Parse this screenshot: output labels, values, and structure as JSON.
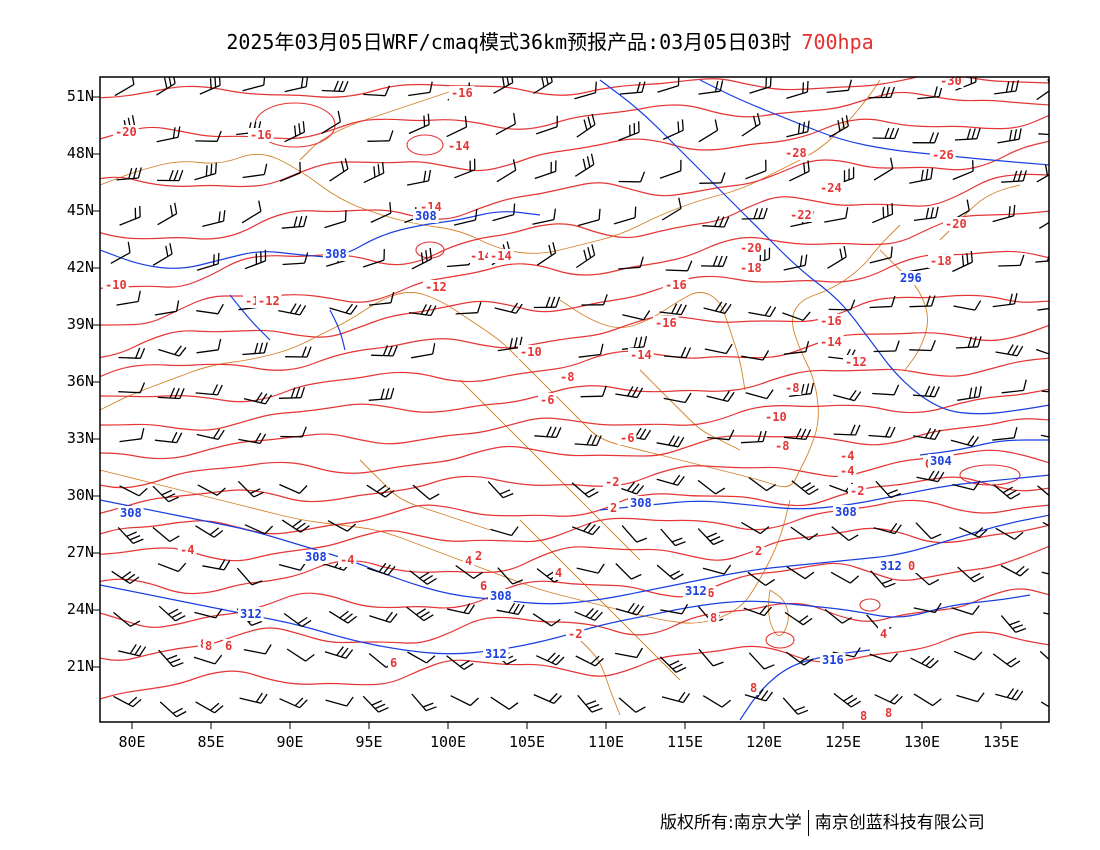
{
  "title": {
    "main": "2025年03月05日WRF/cmaq模式36km预报产品:03月05日03时",
    "level": "700hpa"
  },
  "colors": {
    "temperature": "#e53535",
    "height": "#1a3fe0",
    "border": "#d4822a",
    "wind": "#000000",
    "title_level": "#e53030"
  },
  "map": {
    "lat_labels": [
      "51N",
      "48N",
      "45N",
      "42N",
      "39N",
      "36N",
      "33N",
      "30N",
      "27N",
      "24N",
      "21N"
    ],
    "lon_labels": [
      "80E",
      "85E",
      "90E",
      "95E",
      "100E",
      "105E",
      "110E",
      "115E",
      "120E",
      "125E",
      "130E",
      "135E"
    ],
    "temperature_labels": [
      "-16",
      "-20",
      "-16",
      "-14",
      "-14",
      "-14",
      "-14",
      "-12",
      "-12",
      "-10",
      "-30",
      "-28",
      "-26",
      "-24",
      "-22",
      "-20",
      "-20",
      "-18",
      "-18",
      "-16",
      "-16",
      "-14",
      "-12",
      "-16",
      "-14",
      "-12",
      "-10",
      "-8",
      "-6",
      "-8",
      "-10",
      "-8",
      "-6",
      "-4",
      "-4",
      "-2",
      "-2",
      "0",
      "2",
      "2",
      "0",
      "2",
      "4",
      "-4",
      "-6",
      "-2",
      "4",
      "4",
      "-4",
      "6",
      "6",
      "6",
      "8",
      "8",
      "8",
      "8",
      "8",
      "6",
      "8"
    ],
    "height_labels": [
      "308",
      "308",
      "296",
      "308",
      "308",
      "308",
      "308",
      "312",
      "312",
      "312",
      "312",
      "316",
      "304",
      "308"
    ],
    "wind_barbs": "wind-barbs"
  },
  "footer": {
    "left": "版权所有:南京大学",
    "right": "南京创蓝科技有限公司"
  }
}
